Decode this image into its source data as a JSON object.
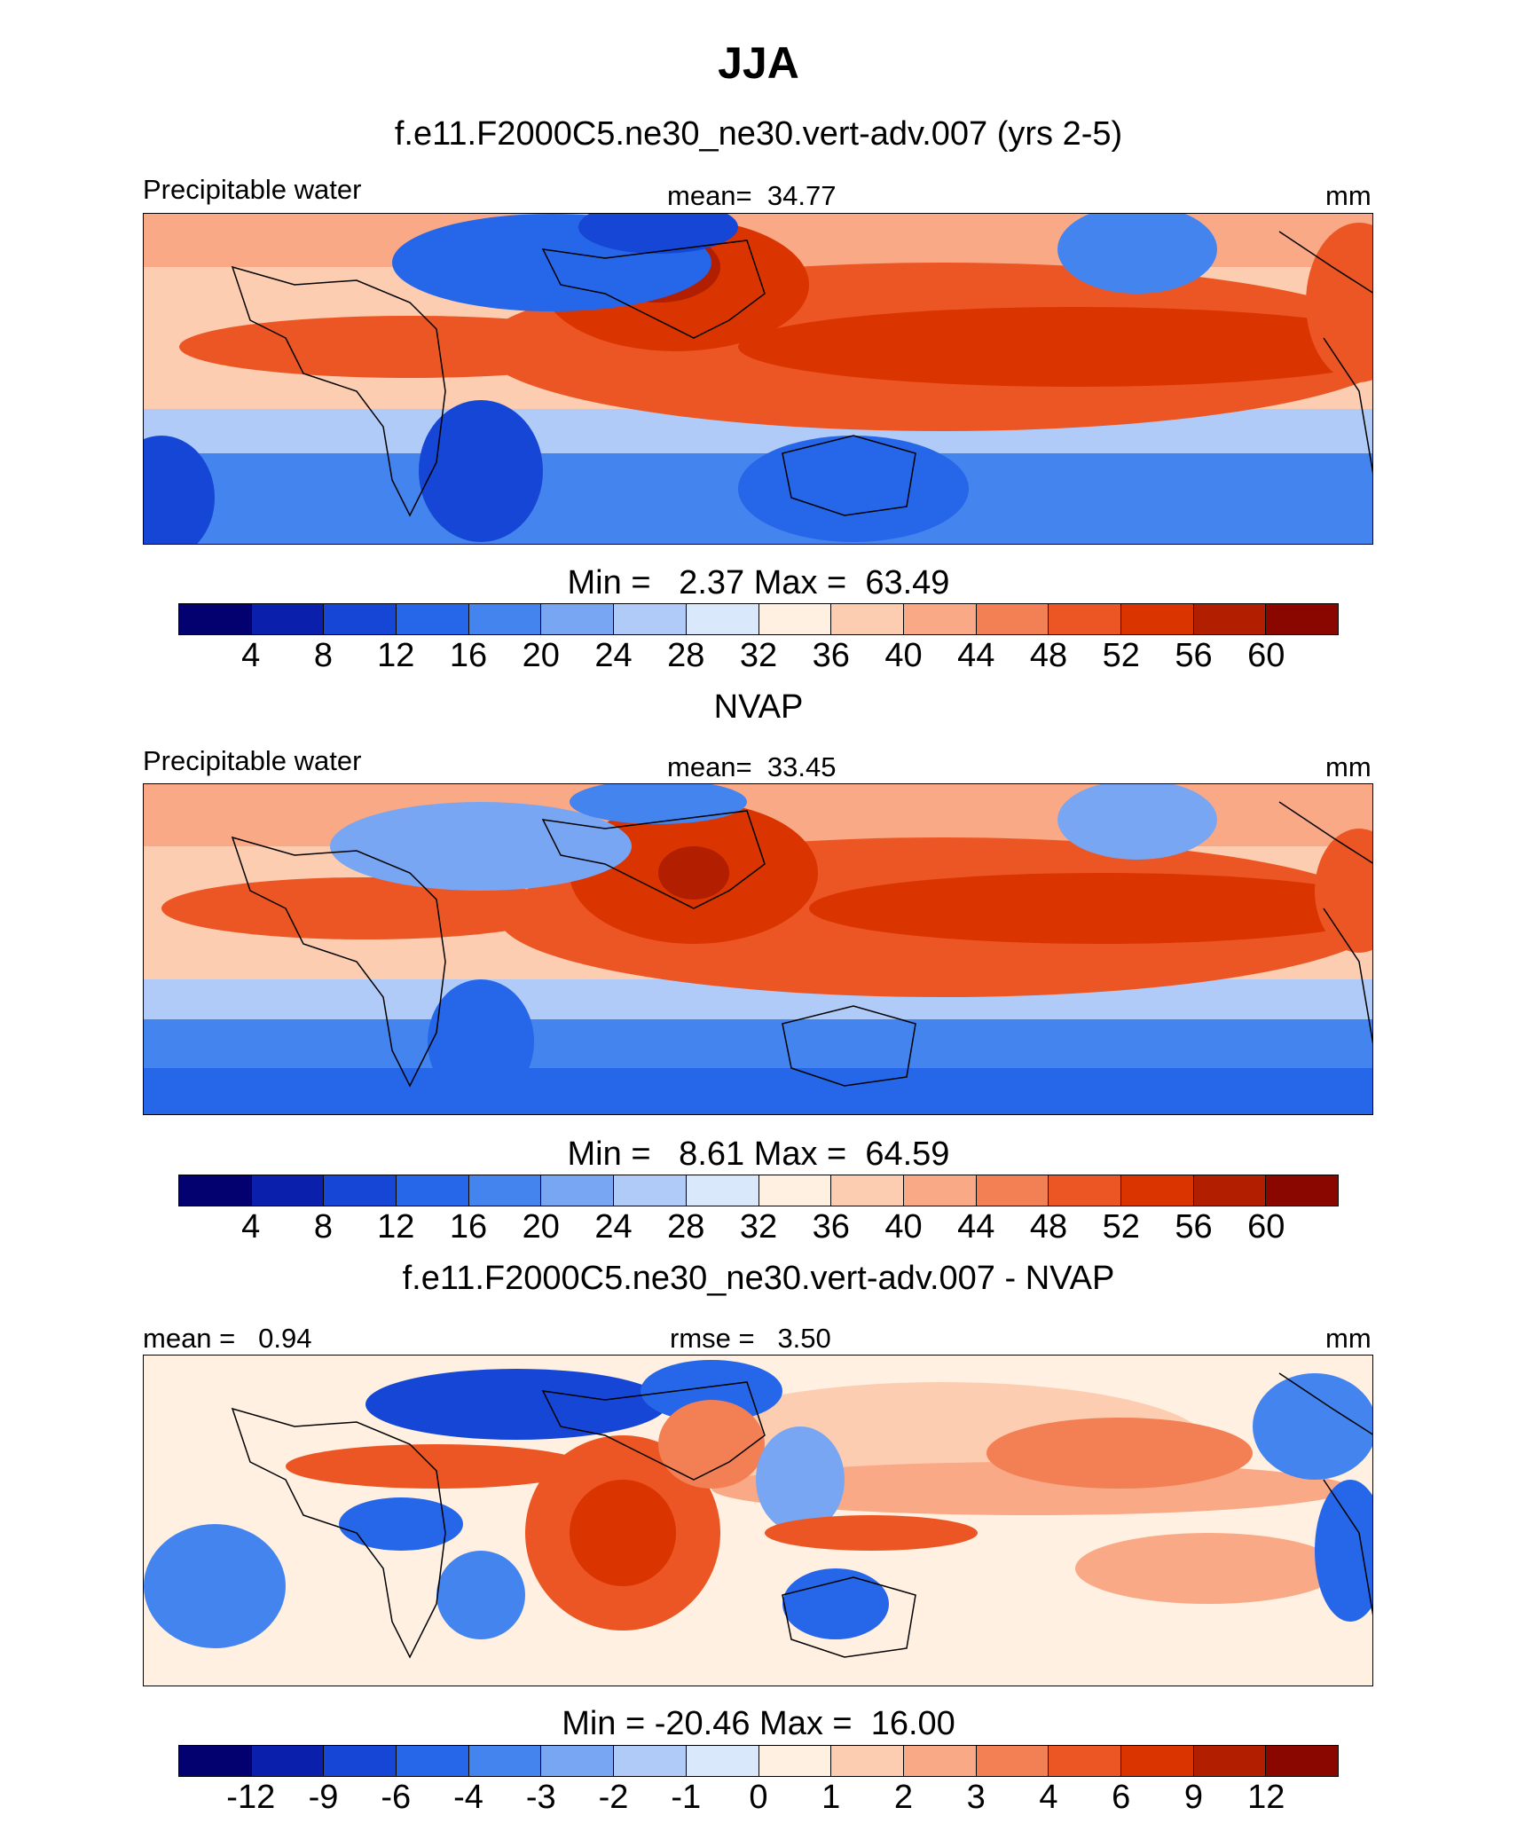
{
  "title": "JJA",
  "colors": {
    "scale": [
      "#03006f",
      "#0a1fab",
      "#1546d6",
      "#2666e8",
      "#4484ee",
      "#78a6f3",
      "#b0cbf7",
      "#d9e8fa",
      "#fff0e2",
      "#fccdb0",
      "#f9a986",
      "#f37f55",
      "#ec5624",
      "#da3400",
      "#b11e00",
      "#8a0700"
    ]
  },
  "panels": [
    {
      "title": "f.e11.F2000C5.ne30_ne30.vert-adv.007 (yrs 2-5)",
      "left_label": "Precipitable water",
      "center_label": "mean=  34.77",
      "right_label": "mm",
      "stats": "Min =   2.37 Max =  63.49",
      "colorbar_ticks": [
        "4",
        "8",
        "12",
        "16",
        "20",
        "24",
        "28",
        "32",
        "36",
        "40",
        "44",
        "48",
        "52",
        "56",
        "60"
      ]
    },
    {
      "title": "NVAP",
      "left_label": "Precipitable water",
      "center_label": "mean=  33.45",
      "right_label": "mm",
      "stats": "Min =   8.61 Max =  64.59",
      "colorbar_ticks": [
        "4",
        "8",
        "12",
        "16",
        "20",
        "24",
        "28",
        "32",
        "36",
        "40",
        "44",
        "48",
        "52",
        "56",
        "60"
      ]
    },
    {
      "title": "f.e11.F2000C5.ne30_ne30.vert-adv.007 - NVAP",
      "left_label": "mean =   0.94",
      "center_label": "rmse =   3.50",
      "right_label": "mm",
      "stats": "Min = -20.46 Max =  16.00",
      "colorbar_ticks": [
        "-12",
        "-9",
        "-6",
        "-4",
        "-3",
        "-2",
        "-1",
        "0",
        "1",
        "2",
        "3",
        "4",
        "6",
        "9",
        "12"
      ]
    }
  ]
}
